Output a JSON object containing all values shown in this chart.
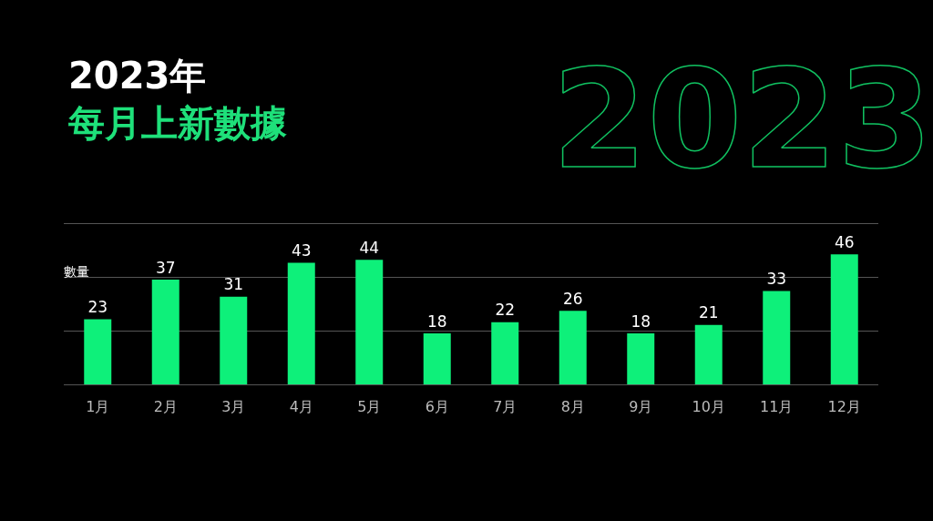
{
  "chart_data": {
    "type": "bar",
    "title": "2023年",
    "subtitle": "每月上新數據",
    "ylabel": "數量",
    "annotations": [
      "2023"
    ],
    "categories": [
      "1月",
      "2月",
      "3月",
      "4月",
      "5月",
      "6月",
      "7月",
      "8月",
      "9月",
      "10月",
      "11月",
      "12月"
    ],
    "values": [
      23,
      37,
      31,
      43,
      44,
      18,
      22,
      26,
      18,
      21,
      33,
      46
    ],
    "color": "#0ef07a",
    "data_labels": true,
    "grid": "y",
    "ylim": [
      0,
      57
    ],
    "yticks": [
      {
        "value": 0,
        "label": null
      },
      {
        "value": 19,
        "label": null
      },
      {
        "value": 38,
        "label": null
      },
      {
        "value": 57,
        "label": null
      }
    ]
  }
}
